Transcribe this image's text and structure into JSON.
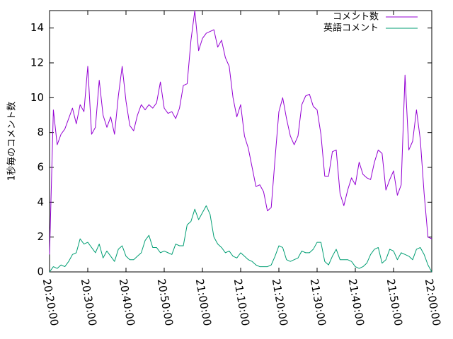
{
  "chart_data": {
    "type": "line",
    "title": "",
    "xlabel": "",
    "ylabel": "1秒毎のコメント数",
    "x_ticks": [
      "20:20:00",
      "20:30:00",
      "20:40:00",
      "20:50:00",
      "21:00:00",
      "21:10:00",
      "21:20:00",
      "21:30:00",
      "21:40:00",
      "21:50:00",
      "22:00:00"
    ],
    "xlim": [
      "20:20:00",
      "22:00:00"
    ],
    "ylim": [
      0,
      15
    ],
    "y_ticks": [
      0,
      2,
      4,
      6,
      8,
      10,
      12,
      14
    ],
    "grid": false,
    "legend_position": "top-right",
    "x_time": [
      "20:20:00",
      "20:21:00",
      "20:22:00",
      "20:23:00",
      "20:24:00",
      "20:25:00",
      "20:26:00",
      "20:27:00",
      "20:28:00",
      "20:29:00",
      "20:30:00",
      "20:31:00",
      "20:32:00",
      "20:33:00",
      "20:34:00",
      "20:35:00",
      "20:36:00",
      "20:37:00",
      "20:38:00",
      "20:39:00",
      "20:40:00",
      "20:41:00",
      "20:42:00",
      "20:43:00",
      "20:44:00",
      "20:45:00",
      "20:46:00",
      "20:47:00",
      "20:48:00",
      "20:49:00",
      "20:50:00",
      "20:51:00",
      "20:52:00",
      "20:53:00",
      "20:54:00",
      "20:55:00",
      "20:56:00",
      "20:57:00",
      "20:58:00",
      "20:59:00",
      "21:00:00",
      "21:01:00",
      "21:02:00",
      "21:03:00",
      "21:04:00",
      "21:05:00",
      "21:06:00",
      "21:07:00",
      "21:08:00",
      "21:09:00",
      "21:10:00",
      "21:11:00",
      "21:12:00",
      "21:13:00",
      "21:14:00",
      "21:15:00",
      "21:16:00",
      "21:17:00",
      "21:18:00",
      "21:19:00",
      "21:20:00",
      "21:21:00",
      "21:22:00",
      "21:23:00",
      "21:24:00",
      "21:25:00",
      "21:26:00",
      "21:27:00",
      "21:28:00",
      "21:29:00",
      "21:30:00",
      "21:31:00",
      "21:32:00",
      "21:33:00",
      "21:34:00",
      "21:35:00",
      "21:36:00",
      "21:37:00",
      "21:38:00",
      "21:39:00",
      "21:40:00",
      "21:41:00",
      "21:42:00",
      "21:43:00",
      "21:44:00",
      "21:45:00",
      "21:46:00",
      "21:47:00",
      "21:48:00",
      "21:49:00",
      "21:50:00",
      "21:51:00",
      "21:52:00",
      "21:53:00",
      "21:54:00",
      "21:55:00",
      "21:56:00",
      "21:57:00",
      "21:58:00",
      "21:59:00",
      "22:00:00"
    ],
    "series": [
      {
        "name": "コメント数",
        "color": "#9400d3",
        "values": [
          1.0,
          9.3,
          7.3,
          7.9,
          8.2,
          8.8,
          9.4,
          8.5,
          9.6,
          9.2,
          11.8,
          7.9,
          8.3,
          11.0,
          9.0,
          8.3,
          8.9,
          7.9,
          10.1,
          11.8,
          9.8,
          8.4,
          8.1,
          9.0,
          9.6,
          9.3,
          9.6,
          9.4,
          9.7,
          10.9,
          9.4,
          9.1,
          9.2,
          8.8,
          9.4,
          10.7,
          10.8,
          13.3,
          15.0,
          12.7,
          13.4,
          13.7,
          13.8,
          13.9,
          12.9,
          13.3,
          12.3,
          11.8,
          10.0,
          8.9,
          9.6,
          7.8,
          7.1,
          6.0,
          4.9,
          5.0,
          4.6,
          3.5,
          3.7,
          6.5,
          9.2,
          10.0,
          8.8,
          7.8,
          7.3,
          7.8,
          9.6,
          10.1,
          10.2,
          9.5,
          9.3,
          7.9,
          5.5,
          5.5,
          6.9,
          7.0,
          4.5,
          3.8,
          4.7,
          5.4,
          5.0,
          6.3,
          5.6,
          5.4,
          5.3,
          6.3,
          7.0,
          6.8,
          4.7,
          5.3,
          5.8,
          4.4,
          5.0,
          11.3,
          7.0,
          7.5,
          9.3,
          7.6,
          4.5,
          2.0,
          1.9
        ]
      },
      {
        "name": "英語コメント",
        "color": "#009e73",
        "values": [
          0.0,
          0.3,
          0.2,
          0.4,
          0.3,
          0.6,
          1.0,
          1.1,
          1.9,
          1.6,
          1.7,
          1.4,
          1.1,
          1.6,
          0.8,
          1.2,
          0.9,
          0.6,
          1.3,
          1.5,
          0.9,
          0.7,
          0.7,
          0.9,
          1.1,
          1.8,
          2.1,
          1.4,
          1.4,
          1.1,
          1.2,
          1.1,
          1.0,
          1.6,
          1.5,
          1.5,
          2.7,
          2.9,
          3.6,
          3.0,
          3.4,
          3.8,
          3.3,
          2.0,
          1.6,
          1.4,
          1.1,
          1.2,
          0.9,
          0.8,
          1.1,
          0.9,
          0.7,
          0.6,
          0.4,
          0.3,
          0.3,
          0.3,
          0.4,
          0.9,
          1.5,
          1.4,
          0.7,
          0.6,
          0.7,
          0.8,
          1.2,
          1.1,
          1.1,
          1.3,
          1.7,
          1.7,
          0.6,
          0.4,
          0.9,
          1.3,
          0.7,
          0.7,
          0.7,
          0.6,
          0.3,
          0.2,
          0.3,
          0.5,
          1.0,
          1.3,
          1.4,
          0.5,
          0.7,
          1.3,
          1.2,
          0.7,
          1.1,
          1.0,
          0.9,
          0.7,
          1.3,
          1.4,
          1.0,
          0.4,
          0.0
        ]
      }
    ]
  }
}
